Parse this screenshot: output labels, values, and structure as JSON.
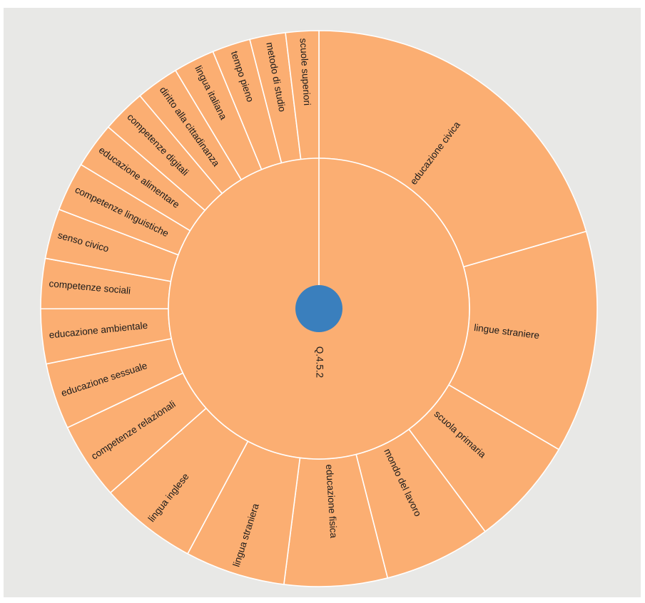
{
  "chart_data": {
    "type": "sunburst",
    "colors": {
      "segment": "#fbae72",
      "center": "#3a7fbd",
      "stroke": "#ffffff"
    },
    "root": {
      "label": "Q.4.5.2",
      "value": 1
    },
    "children": [
      {
        "name": "educazione civica",
        "value": 0.2052
      },
      {
        "name": "lingue straniere",
        "value": 0.1294
      },
      {
        "name": "scuola primaria",
        "value": 0.0635
      },
      {
        "name": "mondo del lavoro",
        "value": 0.0622
      },
      {
        "name": "educazione fisica",
        "value": 0.0598
      },
      {
        "name": "lingua straniera",
        "value": 0.0581
      },
      {
        "name": "lingua inglese",
        "value": 0.0566
      },
      {
        "name": "competenze relazionali",
        "value": 0.0448
      },
      {
        "name": "educazione sessuale",
        "value": 0.0385
      },
      {
        "name": "educazione ambientale",
        "value": 0.0318
      },
      {
        "name": "competenze sociali",
        "value": 0.0291
      },
      {
        "name": "senso civico",
        "value": 0.0291
      },
      {
        "name": "competenze linguistiche",
        "value": 0.0286
      },
      {
        "name": "educazione alimentare",
        "value": 0.0266
      },
      {
        "name": "competenze digitali",
        "value": 0.0255
      },
      {
        "name": "diritto alla cittadinanza",
        "value": 0.025
      },
      {
        "name": "lingua italiana",
        "value": 0.024
      },
      {
        "name": "tempo pieno",
        "value": 0.0222
      },
      {
        "name": "metodo di studio",
        "value": 0.0208
      },
      {
        "name": "scuole superiori",
        "value": 0.0192
      }
    ]
  }
}
